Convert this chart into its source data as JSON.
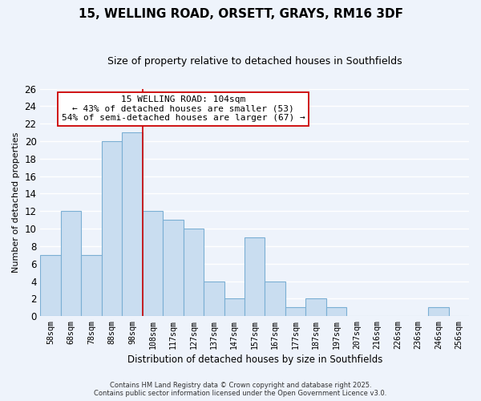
{
  "title": "15, WELLING ROAD, ORSETT, GRAYS, RM16 3DF",
  "subtitle": "Size of property relative to detached houses in Southfields",
  "xlabel": "Distribution of detached houses by size in Southfields",
  "ylabel": "Number of detached properties",
  "bar_labels": [
    "58sqm",
    "68sqm",
    "78sqm",
    "88sqm",
    "98sqm",
    "108sqm",
    "117sqm",
    "127sqm",
    "137sqm",
    "147sqm",
    "157sqm",
    "167sqm",
    "177sqm",
    "187sqm",
    "197sqm",
    "207sqm",
    "216sqm",
    "226sqm",
    "236sqm",
    "246sqm",
    "256sqm"
  ],
  "bar_values": [
    7,
    12,
    7,
    20,
    21,
    12,
    11,
    10,
    4,
    2,
    9,
    4,
    1,
    2,
    1,
    0,
    0,
    0,
    0,
    1,
    0
  ],
  "bar_color": "#c9ddf0",
  "bar_edge_color": "#7bafd4",
  "ylim": [
    0,
    26
  ],
  "yticks": [
    0,
    2,
    4,
    6,
    8,
    10,
    12,
    14,
    16,
    18,
    20,
    22,
    24,
    26
  ],
  "vline_x_idx": 5,
  "vline_color": "#cc0000",
  "annotation_title": "15 WELLING ROAD: 104sqm",
  "annotation_line1": "← 43% of detached houses are smaller (53)",
  "annotation_line2": "54% of semi-detached houses are larger (67) →",
  "annotation_box_color": "#ffffff",
  "annotation_box_edge": "#cc0000",
  "footer_line1": "Contains HM Land Registry data © Crown copyright and database right 2025.",
  "footer_line2": "Contains public sector information licensed under the Open Government Licence v3.0.",
  "bg_color": "#eef3fb",
  "grid_color": "#ffffff",
  "grid_linewidth": 1.0
}
